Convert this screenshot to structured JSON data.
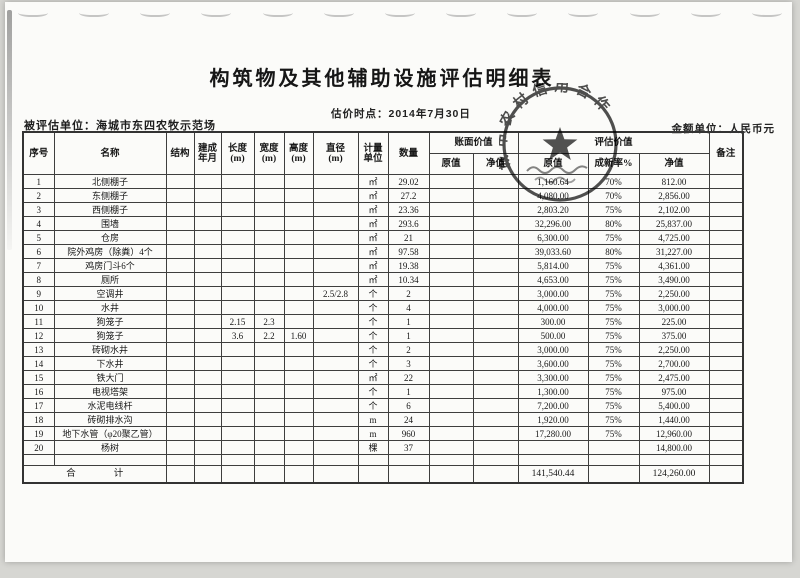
{
  "page": {
    "title": "构筑物及其他辅助设施评估明细表",
    "valuation_date": "估价时点：2014年7月30日",
    "evaluated_unit": "被评估单位：海城市东四农牧示范场",
    "currency_note": "金额单位：人民币元"
  },
  "stamp": {
    "arc_text": "城市农村信用合作",
    "center_icon": "star"
  },
  "table": {
    "header": {
      "seq": "序号",
      "name": "名称",
      "structure": "结构",
      "built_l1": "建成",
      "built_l2": "年月",
      "len_l1": "长度",
      "len_l2": "(m)",
      "wid_l1": "宽度",
      "wid_l2": "(m)",
      "hgt_l1": "高度",
      "hgt_l2": "(m)",
      "dia_l1": "直径",
      "dia_l2": "(m)",
      "unit_l1": "计量",
      "unit_l2": "单位",
      "qty": "数量",
      "book_value": "账面价值",
      "eval_value": "评估价值",
      "book_orig": "原值",
      "book_net": "净值",
      "eval_orig": "原值",
      "rate": "成新率%",
      "eval_net": "净值",
      "note": "备注"
    },
    "rows": [
      [
        "1",
        "北侧棚子",
        "",
        "",
        "",
        "",
        "",
        "",
        "㎡",
        "29.02",
        "",
        "",
        "1,160.64",
        "70%",
        "812.00",
        ""
      ],
      [
        "2",
        "东侧棚子",
        "",
        "",
        "",
        "",
        "",
        "",
        "㎡",
        "27.2",
        "",
        "",
        "4,080.00",
        "70%",
        "2,856.00",
        ""
      ],
      [
        "3",
        "西侧棚子",
        "",
        "",
        "",
        "",
        "",
        "",
        "㎡",
        "23.36",
        "",
        "",
        "2,803.20",
        "75%",
        "2,102.00",
        ""
      ],
      [
        "4",
        "围墙",
        "",
        "",
        "",
        "",
        "",
        "",
        "㎡",
        "293.6",
        "",
        "",
        "32,296.00",
        "80%",
        "25,837.00",
        ""
      ],
      [
        "5",
        "仓房",
        "",
        "",
        "",
        "",
        "",
        "",
        "㎡",
        "21",
        "",
        "",
        "6,300.00",
        "75%",
        "4,725.00",
        ""
      ],
      [
        "6",
        "院外鸡房（除粪）4个",
        "",
        "",
        "",
        "",
        "",
        "",
        "㎡",
        "97.58",
        "",
        "",
        "39,033.60",
        "80%",
        "31,227.00",
        ""
      ],
      [
        "7",
        "鸡房门斗6个",
        "",
        "",
        "",
        "",
        "",
        "",
        "㎡",
        "19.38",
        "",
        "",
        "5,814.00",
        "75%",
        "4,361.00",
        ""
      ],
      [
        "8",
        "厕所",
        "",
        "",
        "",
        "",
        "",
        "",
        "㎡",
        "10.34",
        "",
        "",
        "4,653.00",
        "75%",
        "3,490.00",
        ""
      ],
      [
        "9",
        "空调井",
        "",
        "",
        "",
        "",
        "",
        "2.5/2.8",
        "个",
        "2",
        "",
        "",
        "3,000.00",
        "75%",
        "2,250.00",
        ""
      ],
      [
        "10",
        "水井",
        "",
        "",
        "",
        "",
        "",
        "",
        "个",
        "4",
        "",
        "",
        "4,000.00",
        "75%",
        "3,000.00",
        ""
      ],
      [
        "11",
        "狗笼子",
        "",
        "",
        "2.15",
        "2.3",
        "",
        "",
        "个",
        "1",
        "",
        "",
        "300.00",
        "75%",
        "225.00",
        ""
      ],
      [
        "12",
        "狗笼子",
        "",
        "",
        "3.6",
        "2.2",
        "1.60",
        "",
        "个",
        "1",
        "",
        "",
        "500.00",
        "75%",
        "375.00",
        ""
      ],
      [
        "13",
        "砖砌水井",
        "",
        "",
        "",
        "",
        "",
        "",
        "个",
        "2",
        "",
        "",
        "3,000.00",
        "75%",
        "2,250.00",
        ""
      ],
      [
        "14",
        "下水井",
        "",
        "",
        "",
        "",
        "",
        "",
        "个",
        "3",
        "",
        "",
        "3,600.00",
        "75%",
        "2,700.00",
        ""
      ],
      [
        "15",
        "铁大门",
        "",
        "",
        "",
        "",
        "",
        "",
        "㎡",
        "22",
        "",
        "",
        "3,300.00",
        "75%",
        "2,475.00",
        ""
      ],
      [
        "16",
        "电视塔架",
        "",
        "",
        "",
        "",
        "",
        "",
        "个",
        "1",
        "",
        "",
        "1,300.00",
        "75%",
        "975.00",
        ""
      ],
      [
        "17",
        "水泥电线杆",
        "",
        "",
        "",
        "",
        "",
        "",
        "个",
        "6",
        "",
        "",
        "7,200.00",
        "75%",
        "5,400.00",
        ""
      ],
      [
        "18",
        "砖砌排水沟",
        "",
        "",
        "",
        "",
        "",
        "",
        "m",
        "24",
        "",
        "",
        "1,920.00",
        "75%",
        "1,440.00",
        ""
      ],
      [
        "19",
        "地下水管（φ20聚乙管）",
        "",
        "",
        "",
        "",
        "",
        "",
        "m",
        "960",
        "",
        "",
        "17,280.00",
        "75%",
        "12,960.00",
        ""
      ],
      [
        "20",
        "杨树",
        "",
        "",
        "",
        "",
        "",
        "",
        "棵",
        "37",
        "",
        "",
        "",
        "",
        "14,800.00",
        ""
      ]
    ],
    "total": {
      "label": "合　　　　计",
      "eval_orig": "141,540.44",
      "eval_net": "124,260.00"
    }
  }
}
